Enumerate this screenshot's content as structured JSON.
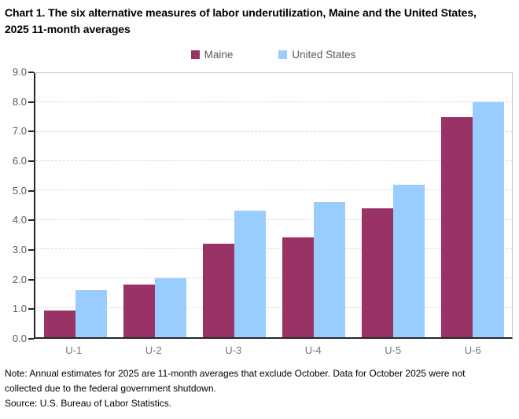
{
  "title": "Chart 1. The six alternative measures of labor underutilization, Maine and the United States, 2025 11-month averages",
  "legend": [
    {
      "label": "Maine",
      "color": "#993366"
    },
    {
      "label": "United States",
      "color": "#99CCFF"
    }
  ],
  "chart_data": {
    "type": "bar",
    "title": "Chart 1. The six alternative measures of labor underutilization, Maine and the United States, 2025 11-month averages",
    "categories": [
      "U-1",
      "U-2",
      "U-3",
      "U-4",
      "U-5",
      "U-6"
    ],
    "series": [
      {
        "name": "Maine",
        "color": "#993366",
        "values": [
          0.9,
          1.8,
          3.2,
          3.4,
          4.4,
          7.5
        ]
      },
      {
        "name": "United States",
        "color": "#99CCFF",
        "values": [
          1.6,
          2.0,
          4.3,
          4.6,
          5.2,
          8.0
        ]
      }
    ],
    "xlabel": "",
    "ylabel": "",
    "ylim": [
      0,
      9
    ],
    "ytick_interval": 1.0,
    "ytick_labels": [
      "0.0",
      "1.0",
      "2.0",
      "3.0",
      "4.0",
      "5.0",
      "6.0",
      "7.0",
      "8.0",
      "9.0"
    ],
    "grid": "horizontal-dashed",
    "legend_position": "top-center"
  },
  "footer": {
    "note": "Note: Annual estimates for 2025 are 11-month averages that exclude October. Data for October 2025 were not collected due to the federal government shutdown.",
    "source": "Source: U.S. Bureau of Labor Statistics."
  },
  "colors": {
    "axis": "#262626",
    "gridline": "#D9D9D9",
    "plot_border": "#C6C6C6",
    "tick_label": "#595959",
    "category_label": "#767676"
  }
}
